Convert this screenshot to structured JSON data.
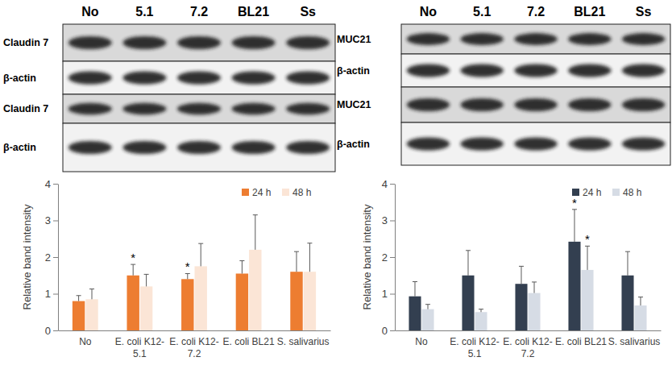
{
  "blots": [
    {
      "lanes": [
        "No",
        "5.1",
        "7.2",
        "BL21",
        "Ss"
      ],
      "rows": [
        "Claudin 7",
        "β-actin",
        "Claudin 7",
        "β-actin"
      ]
    },
    {
      "lanes": [
        "No",
        "5.1",
        "7.2",
        "BL21",
        "Ss"
      ],
      "rows": [
        "MUC21",
        "β-actin",
        "MUC21",
        "β-actin"
      ]
    }
  ],
  "chart_data": [
    {
      "type": "bar",
      "categories": [
        "No",
        "E. coli K12-5.1",
        "E. coli K12-7.2",
        "E. coli BL21",
        "S. salivarius"
      ],
      "ylabel": "Relative band intensity",
      "ylim": [
        0,
        4
      ],
      "yticks": [
        0,
        1,
        2,
        3,
        4
      ],
      "grid": false,
      "legend": "top-right",
      "series": [
        {
          "name": "24 h",
          "color": "#ed7d31",
          "values": [
            0.8,
            1.5,
            1.4,
            1.55,
            1.6
          ],
          "errors": [
            0.15,
            0.3,
            0.15,
            0.35,
            0.55
          ],
          "annotations": [
            null,
            "*",
            "*",
            null,
            null
          ]
        },
        {
          "name": "48 h",
          "color": "#fbe5d6",
          "values": [
            0.85,
            1.2,
            1.75,
            2.2,
            1.6
          ],
          "errors": [
            0.28,
            0.33,
            0.62,
            0.95,
            0.78
          ],
          "annotations": [
            null,
            null,
            null,
            null,
            null
          ]
        }
      ]
    },
    {
      "type": "bar",
      "categories": [
        "No",
        "E. coli K12-5.1",
        "E. coli K12-7.2",
        "E. coli BL21",
        "S. salivarius"
      ],
      "ylabel": "Relative band intensity",
      "ylim": [
        0,
        4
      ],
      "yticks": [
        0,
        1,
        2,
        3,
        4
      ],
      "grid": false,
      "legend": "top-right",
      "series": [
        {
          "name": "24 h",
          "color": "#333f50",
          "values": [
            0.93,
            1.5,
            1.27,
            2.42,
            1.5
          ],
          "errors": [
            0.4,
            0.68,
            0.48,
            0.88,
            0.65
          ],
          "annotations": [
            null,
            null,
            null,
            "*",
            null
          ]
        },
        {
          "name": "48 h",
          "color": "#d6dce5",
          "values": [
            0.58,
            0.5,
            1.02,
            1.65,
            0.68
          ],
          "errors": [
            0.13,
            0.08,
            0.3,
            0.65,
            0.23
          ],
          "annotations": [
            null,
            null,
            null,
            "*",
            null
          ]
        }
      ]
    }
  ]
}
